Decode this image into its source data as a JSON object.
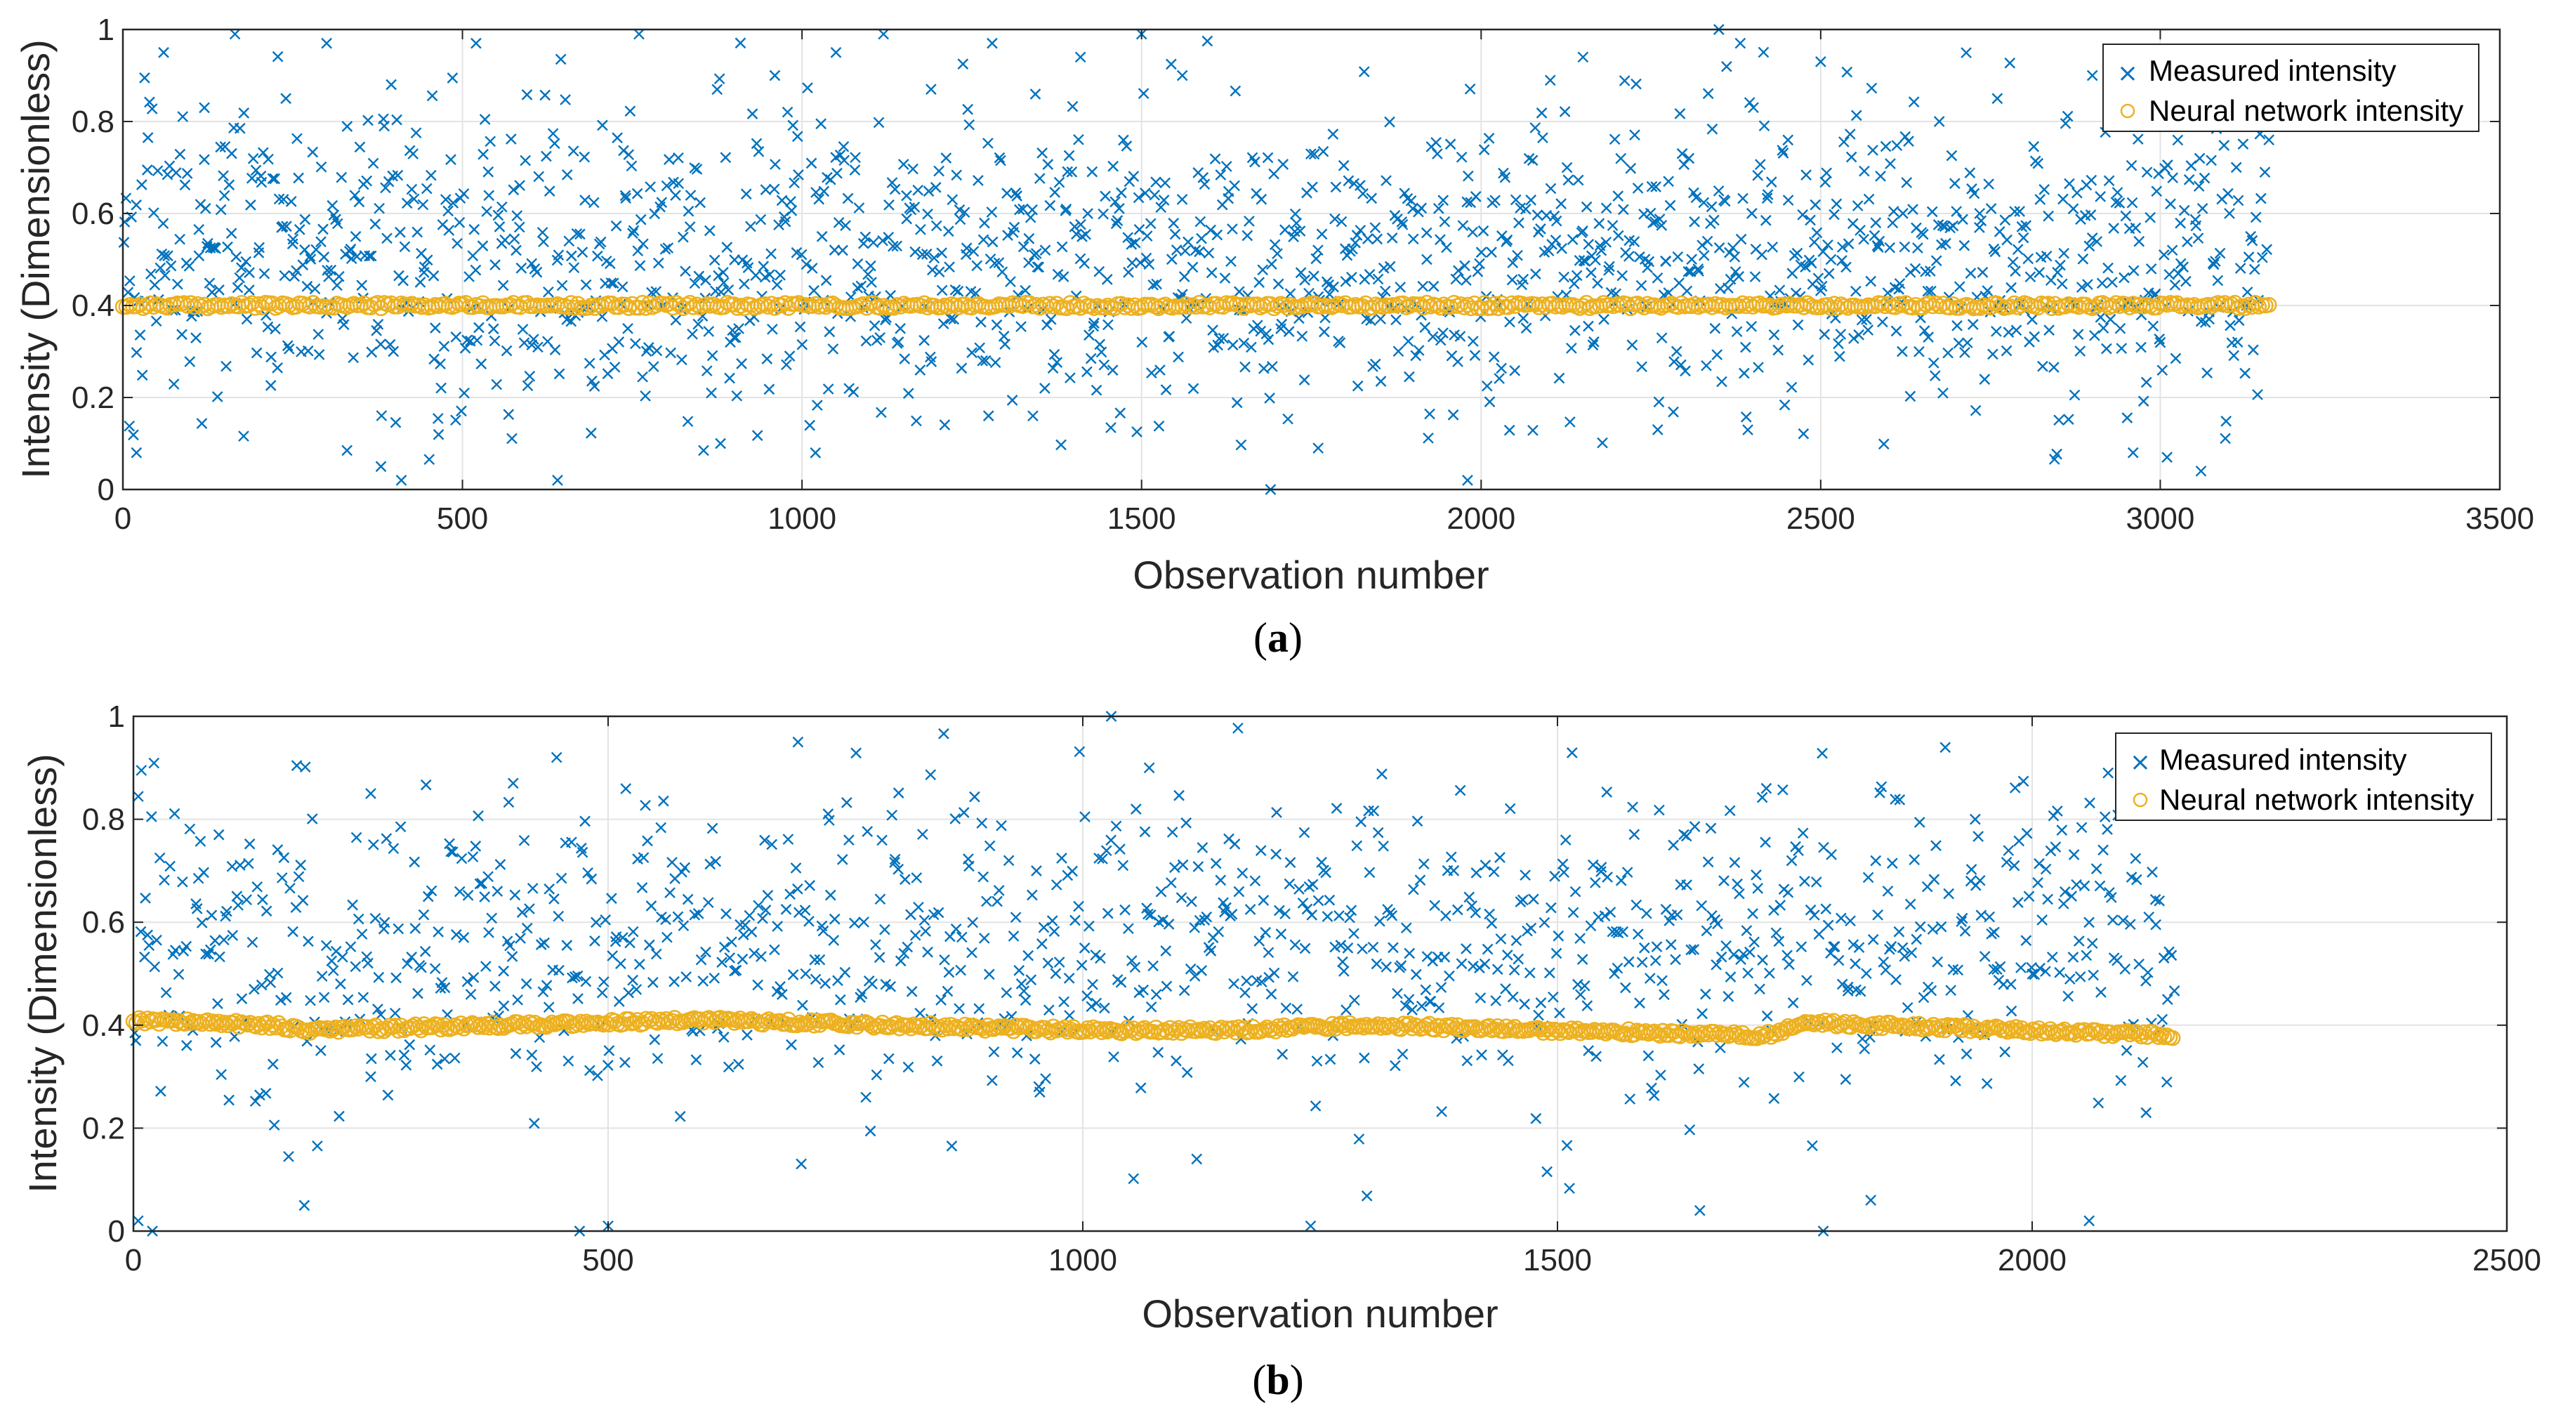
{
  "colors": {
    "measured": "#0072BD",
    "network": "#EDB120",
    "grid": "#e3e3e3",
    "axis": "#262626"
  },
  "chart_data": [
    {
      "type": "scatter",
      "panel_label": "a",
      "xlabel": "Observation number",
      "ylabel": "Intensity (Dimensionless)",
      "xlim": [
        0,
        3500
      ],
      "ylim": [
        0,
        1
      ],
      "xticks": [
        "0",
        "500",
        "1000",
        "1500",
        "2000",
        "2500",
        "3000",
        "3500"
      ],
      "yticks": [
        "0",
        "0.2",
        "0.4",
        "0.6",
        "0.8",
        "1"
      ],
      "grid": true,
      "legend_position": "top-right",
      "legend": [
        "Measured intensity",
        "Neural network intensity"
      ],
      "series": [
        {
          "name": "Measured intensity",
          "marker": "x",
          "n": 3160,
          "mean": 0.5,
          "spread": 0.17,
          "x": [
            20,
            60,
            120,
            165,
            240,
            300,
            380,
            410,
            520,
            640,
            760,
            880,
            960,
            1050,
            1120,
            1190,
            1280,
            1340,
            1410,
            1500,
            1560,
            1690,
            1760,
            1980,
            2150,
            2260,
            2350,
            2500,
            2620,
            2760,
            2900,
            2960,
            3010,
            3060,
            3160
          ],
          "y": [
            0.08,
            0.95,
            0.83,
            0.99,
            0.85,
            0.97,
            0.05,
            0.02,
            0.97,
            0.02,
            0.99,
            0.1,
            0.9,
            0.95,
            0.99,
            0.87,
            0.97,
            0.16,
            0.94,
            0.99,
            0.9,
            0.0,
            0.09,
            0.02,
            0.94,
            0.13,
            1.0,
            0.93,
            0.3,
            0.85,
            0.9,
            0.08,
            0.07,
            0.04,
            0.76
          ]
        },
        {
          "name": "Neural network intensity",
          "marker": "o",
          "n": 3160,
          "x": [
            0,
            3160
          ],
          "y": [
            0.4,
            0.4
          ]
        }
      ]
    },
    {
      "type": "scatter",
      "panel_label": "b",
      "xlabel": "Observation number",
      "ylabel": "Intensity (Dimensionless)",
      "xlim": [
        0,
        2500
      ],
      "ylim": [
        0,
        1
      ],
      "xticks": [
        "0",
        "500",
        "1000",
        "1500",
        "2000",
        "2500"
      ],
      "yticks": [
        "0",
        "0.2",
        "0.4",
        "0.6",
        "0.8",
        "1"
      ],
      "grid": true,
      "legend_position": "top-right",
      "legend": [
        "Measured intensity",
        "Neural network intensity"
      ],
      "series": [
        {
          "name": "Measured intensity",
          "marker": "x",
          "n": 2150,
          "mean": 0.56,
          "spread": 0.15,
          "x": [
            5,
            20,
            90,
            180,
            250,
            400,
            470,
            500,
            700,
            1030,
            1070,
            1120,
            1240,
            1650,
            1720,
            1780,
            1830,
            1940,
            2060,
            2080,
            2120
          ],
          "y": [
            0.02,
            0.0,
            0.77,
            0.05,
            0.85,
            0.87,
            0.0,
            0.01,
            0.95,
            1.0,
            0.9,
            0.14,
            0.01,
            0.04,
            0.86,
            0.0,
            0.06,
            0.8,
            0.02,
            0.89,
            0.23
          ]
        },
        {
          "name": "Neural network intensity",
          "marker": "o",
          "n": 2150,
          "x": [
            0,
            150,
            180,
            600,
            1000,
            1150,
            1300,
            1500,
            1720,
            1760,
            2000,
            2150
          ],
          "y": [
            0.41,
            0.4,
            0.39,
            0.41,
            0.39,
            0.39,
            0.4,
            0.39,
            0.38,
            0.405,
            0.39,
            0.38
          ]
        }
      ]
    }
  ]
}
